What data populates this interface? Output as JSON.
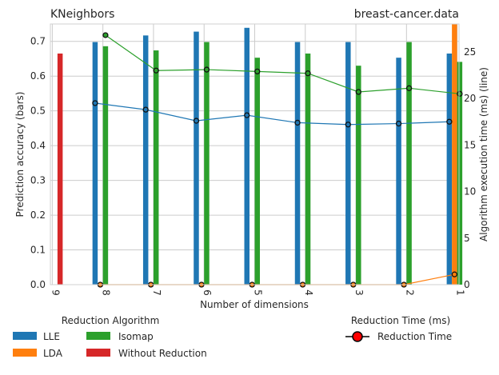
{
  "chart_data": {
    "type": "bar",
    "title_left": "KNeighbors",
    "title_right": "breast-cancer.data",
    "xlabel": "Number of dimensions",
    "ylabel_left": "Prediction accuracy (bars)",
    "ylabel_right": "Algorithm execution time (ms) (line)",
    "categories": [
      "9",
      "8",
      "7",
      "6",
      "5",
      "4",
      "3",
      "2",
      "1"
    ],
    "ylim_left": [
      0,
      0.75
    ],
    "yticks_left": [
      "0.0",
      "0.1",
      "0.2",
      "0.3",
      "0.4",
      "0.5",
      "0.6",
      "0.7"
    ],
    "ylim_right": [
      0,
      28
    ],
    "yticks_right": [
      "0",
      "5",
      "10",
      "15",
      "20",
      "25"
    ],
    "grid": true,
    "bar_series": [
      {
        "name": "LLE",
        "color": "#1f77b4",
        "values": [
          null,
          0.698,
          0.717,
          0.728,
          0.739,
          0.698,
          0.698,
          0.653,
          0.665
        ]
      },
      {
        "name": "LDA",
        "color": "#ff7f0e",
        "values": [
          null,
          null,
          null,
          null,
          null,
          null,
          null,
          null,
          0.755
        ]
      },
      {
        "name": "Isomap",
        "color": "#2ca02c",
        "values": [
          null,
          0.686,
          0.674,
          0.698,
          0.653,
          0.665,
          0.63,
          0.698,
          0.641
        ]
      },
      {
        "name": "Without Reduction",
        "color": "#d62728",
        "values": [
          0.665,
          null,
          null,
          null,
          null,
          null,
          null,
          null,
          null
        ]
      }
    ],
    "line_series": [
      {
        "name": "LLE",
        "color": "#1f77b4",
        "values": [
          null,
          19.5,
          18.8,
          17.6,
          18.2,
          17.4,
          17.2,
          17.3,
          17.5
        ]
      },
      {
        "name": "LDA",
        "color": "#ff7f0e",
        "values": [
          null,
          0.0,
          0.0,
          0.0,
          0.0,
          0.0,
          0.0,
          0.0,
          1.1
        ]
      },
      {
        "name": "Isomap",
        "color": "#2ca02c",
        "values": [
          null,
          26.8,
          23.0,
          23.1,
          22.9,
          22.7,
          20.7,
          21.1,
          20.5
        ]
      }
    ],
    "legend_bars_title": "Reduction Algorithm",
    "legend_line_title": "Reduction Time (ms)",
    "legend_line_label": "Reduction Time",
    "legend_line_marker_color": "#ff0000",
    "legend_placement": "below"
  }
}
